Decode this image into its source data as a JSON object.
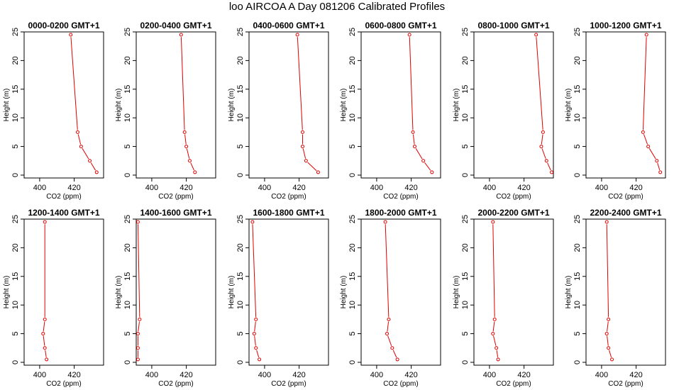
{
  "title": "loo AIRCOA A  Day 081206  Calibrated Profiles",
  "chart_data": [
    {
      "type": "line",
      "title": "0000-0200 GMT+1",
      "xlabel": "CO2 (ppm)",
      "ylabel": "Height (m)",
      "xlim": [
        391,
        437
      ],
      "ylim": [
        -0.5,
        25
      ],
      "x_ticks": [
        400,
        420
      ],
      "y_ticks": [
        0,
        5,
        10,
        15,
        20,
        25
      ],
      "color": "#e00000",
      "series": [
        {
          "x": [
            433,
            429,
            424,
            422,
            418
          ],
          "y": [
            0.5,
            2.5,
            5,
            7.5,
            24.5
          ]
        }
      ]
    },
    {
      "type": "line",
      "title": "0200-0400 GMT+1",
      "xlabel": "CO2 (ppm)",
      "ylabel": "Height (m)",
      "xlim": [
        391,
        437
      ],
      "ylim": [
        -0.5,
        25
      ],
      "x_ticks": [
        400,
        420
      ],
      "y_ticks": [
        0,
        5,
        10,
        15,
        20,
        25
      ],
      "color": "#e00000",
      "series": [
        {
          "x": [
            425,
            422,
            420,
            419,
            417
          ],
          "y": [
            0.5,
            2.5,
            5,
            7.5,
            24.5
          ]
        }
      ]
    },
    {
      "type": "line",
      "title": "0400-0600 GMT+1",
      "xlabel": "CO2 (ppm)",
      "ylabel": "Height (m)",
      "xlim": [
        391,
        437
      ],
      "ylim": [
        -0.5,
        25
      ],
      "x_ticks": [
        400,
        420
      ],
      "y_ticks": [
        0,
        5,
        10,
        15,
        20,
        25
      ],
      "color": "#e00000",
      "series": [
        {
          "x": [
            431,
            424,
            422,
            422,
            419
          ],
          "y": [
            0.5,
            2.5,
            5,
            7.5,
            24.5
          ]
        }
      ]
    },
    {
      "type": "line",
      "title": "0600-0800 GMT+1",
      "xlabel": "CO2 (ppm)",
      "ylabel": "Height (m)",
      "xlim": [
        391,
        437
      ],
      "ylim": [
        -0.5,
        25
      ],
      "x_ticks": [
        400,
        420
      ],
      "y_ticks": [
        0,
        5,
        10,
        15,
        20,
        25
      ],
      "color": "#e00000",
      "series": [
        {
          "x": [
            432,
            427,
            422,
            421,
            419
          ],
          "y": [
            0.5,
            2.5,
            5,
            7.5,
            24.5
          ]
        }
      ]
    },
    {
      "type": "line",
      "title": "0800-1000 GMT+1",
      "xlabel": "CO2 (ppm)",
      "ylabel": "Height (m)",
      "xlim": [
        391,
        437
      ],
      "ylim": [
        -0.5,
        25
      ],
      "x_ticks": [
        400,
        420
      ],
      "y_ticks": [
        0,
        5,
        10,
        15,
        20,
        25
      ],
      "color": "#e00000",
      "series": [
        {
          "x": [
            436,
            433,
            430,
            431,
            427
          ],
          "y": [
            0.5,
            2.5,
            5,
            7.5,
            24.5
          ]
        }
      ]
    },
    {
      "type": "line",
      "title": "1000-1200 GMT+1",
      "xlabel": "CO2 (ppm)",
      "ylabel": "Height (m)",
      "xlim": [
        391,
        437
      ],
      "ylim": [
        -0.5,
        25
      ],
      "x_ticks": [
        400,
        420
      ],
      "y_ticks": [
        0,
        5,
        10,
        15,
        20,
        25
      ],
      "color": "#e00000",
      "series": [
        {
          "x": [
            434,
            432,
            427,
            424,
            426
          ],
          "y": [
            0.5,
            2.5,
            5,
            7.5,
            24.5
          ]
        }
      ]
    },
    {
      "type": "line",
      "title": "1200-1400 GMT+1",
      "xlabel": "CO2 (ppm)",
      "ylabel": "Height (m)",
      "xlim": [
        391,
        437
      ],
      "ylim": [
        -0.5,
        25
      ],
      "x_ticks": [
        400,
        420
      ],
      "y_ticks": [
        0,
        5,
        10,
        15,
        20,
        25
      ],
      "color": "#e00000",
      "series": [
        {
          "x": [
            404,
            403,
            402,
            403,
            403
          ],
          "y": [
            0.5,
            2.5,
            5,
            7.5,
            24.5
          ]
        }
      ]
    },
    {
      "type": "line",
      "title": "1400-1600 GMT+1",
      "xlabel": "CO2 (ppm)",
      "ylabel": "Height (m)",
      "xlim": [
        391,
        437
      ],
      "ylim": [
        -0.5,
        25
      ],
      "x_ticks": [
        400,
        420
      ],
      "y_ticks": [
        0,
        5,
        10,
        15,
        20,
        25
      ],
      "color": "#e00000",
      "series": [
        {
          "x": [
            392,
            392,
            392,
            393,
            392
          ],
          "y": [
            0.5,
            2.5,
            5,
            7.5,
            24.5
          ]
        }
      ]
    },
    {
      "type": "line",
      "title": "1600-1800 GMT+1",
      "xlabel": "CO2 (ppm)",
      "ylabel": "Height (m)",
      "xlim": [
        391,
        437
      ],
      "ylim": [
        -0.5,
        25
      ],
      "x_ticks": [
        400,
        420
      ],
      "y_ticks": [
        0,
        5,
        10,
        15,
        20,
        25
      ],
      "color": "#e00000",
      "series": [
        {
          "x": [
            397,
            395,
            394,
            395,
            393
          ],
          "y": [
            0.5,
            2.5,
            5,
            7.5,
            24.5
          ]
        }
      ]
    },
    {
      "type": "line",
      "title": "1800-2000 GMT+1",
      "xlabel": "CO2 (ppm)",
      "ylabel": "Height (m)",
      "xlim": [
        391,
        437
      ],
      "ylim": [
        -0.5,
        25
      ],
      "x_ticks": [
        400,
        420
      ],
      "y_ticks": [
        0,
        5,
        10,
        15,
        20,
        25
      ],
      "color": "#e00000",
      "series": [
        {
          "x": [
            412,
            409,
            406,
            407,
            405
          ],
          "y": [
            0.5,
            2.5,
            5,
            7.5,
            24.5
          ]
        }
      ]
    },
    {
      "type": "line",
      "title": "2000-2200 GMT+1",
      "xlabel": "CO2 (ppm)",
      "ylabel": "Height (m)",
      "xlim": [
        391,
        437
      ],
      "ylim": [
        -0.5,
        25
      ],
      "x_ticks": [
        400,
        420
      ],
      "y_ticks": [
        0,
        5,
        10,
        15,
        20,
        25
      ],
      "color": "#e00000",
      "series": [
        {
          "x": [
            405,
            404,
            402,
            403,
            402
          ],
          "y": [
            0.5,
            2.5,
            5,
            7.5,
            24.5
          ]
        }
      ]
    },
    {
      "type": "line",
      "title": "2200-2400 GMT+1",
      "xlabel": "CO2 (ppm)",
      "ylabel": "Height (m)",
      "xlim": [
        391,
        437
      ],
      "ylim": [
        -0.5,
        25
      ],
      "x_ticks": [
        400,
        420
      ],
      "y_ticks": [
        0,
        5,
        10,
        15,
        20,
        25
      ],
      "color": "#e00000",
      "series": [
        {
          "x": [
            406,
            404,
            403,
            404,
            403
          ],
          "y": [
            0.5,
            2.5,
            5,
            7.5,
            24.5
          ]
        }
      ]
    }
  ]
}
